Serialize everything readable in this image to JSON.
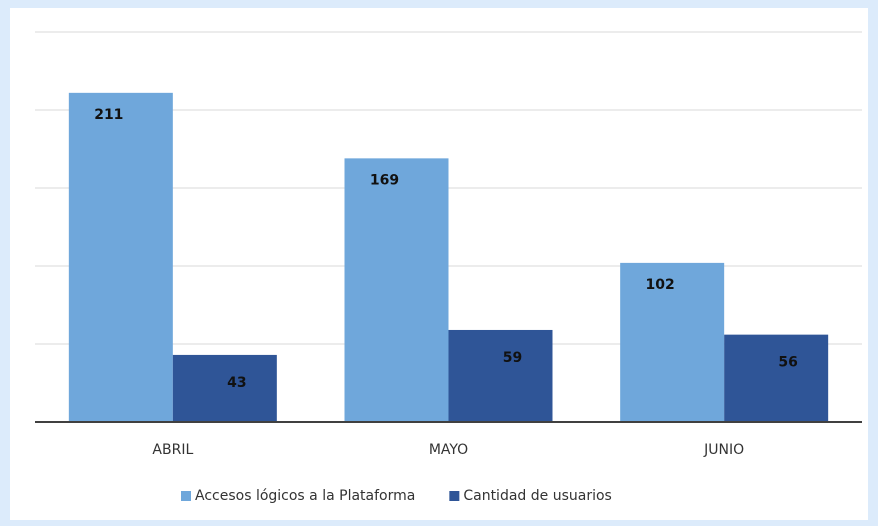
{
  "chart_data": {
    "type": "bar",
    "categories": [
      "ABRIL",
      "MAYO",
      "JUNIO"
    ],
    "series": [
      {
        "name": "Accesos lógicos a la Plataforma",
        "color": "#6fa7db",
        "values": [
          211,
          169,
          102
        ]
      },
      {
        "name": "Cantidad de usuarios",
        "color": "#2f5597",
        "values": [
          43,
          59,
          56
        ]
      }
    ],
    "ylim": [
      0,
      250
    ],
    "yticks": [
      0,
      50,
      100,
      150,
      200,
      250
    ],
    "grid": true,
    "legend": "bottom"
  }
}
